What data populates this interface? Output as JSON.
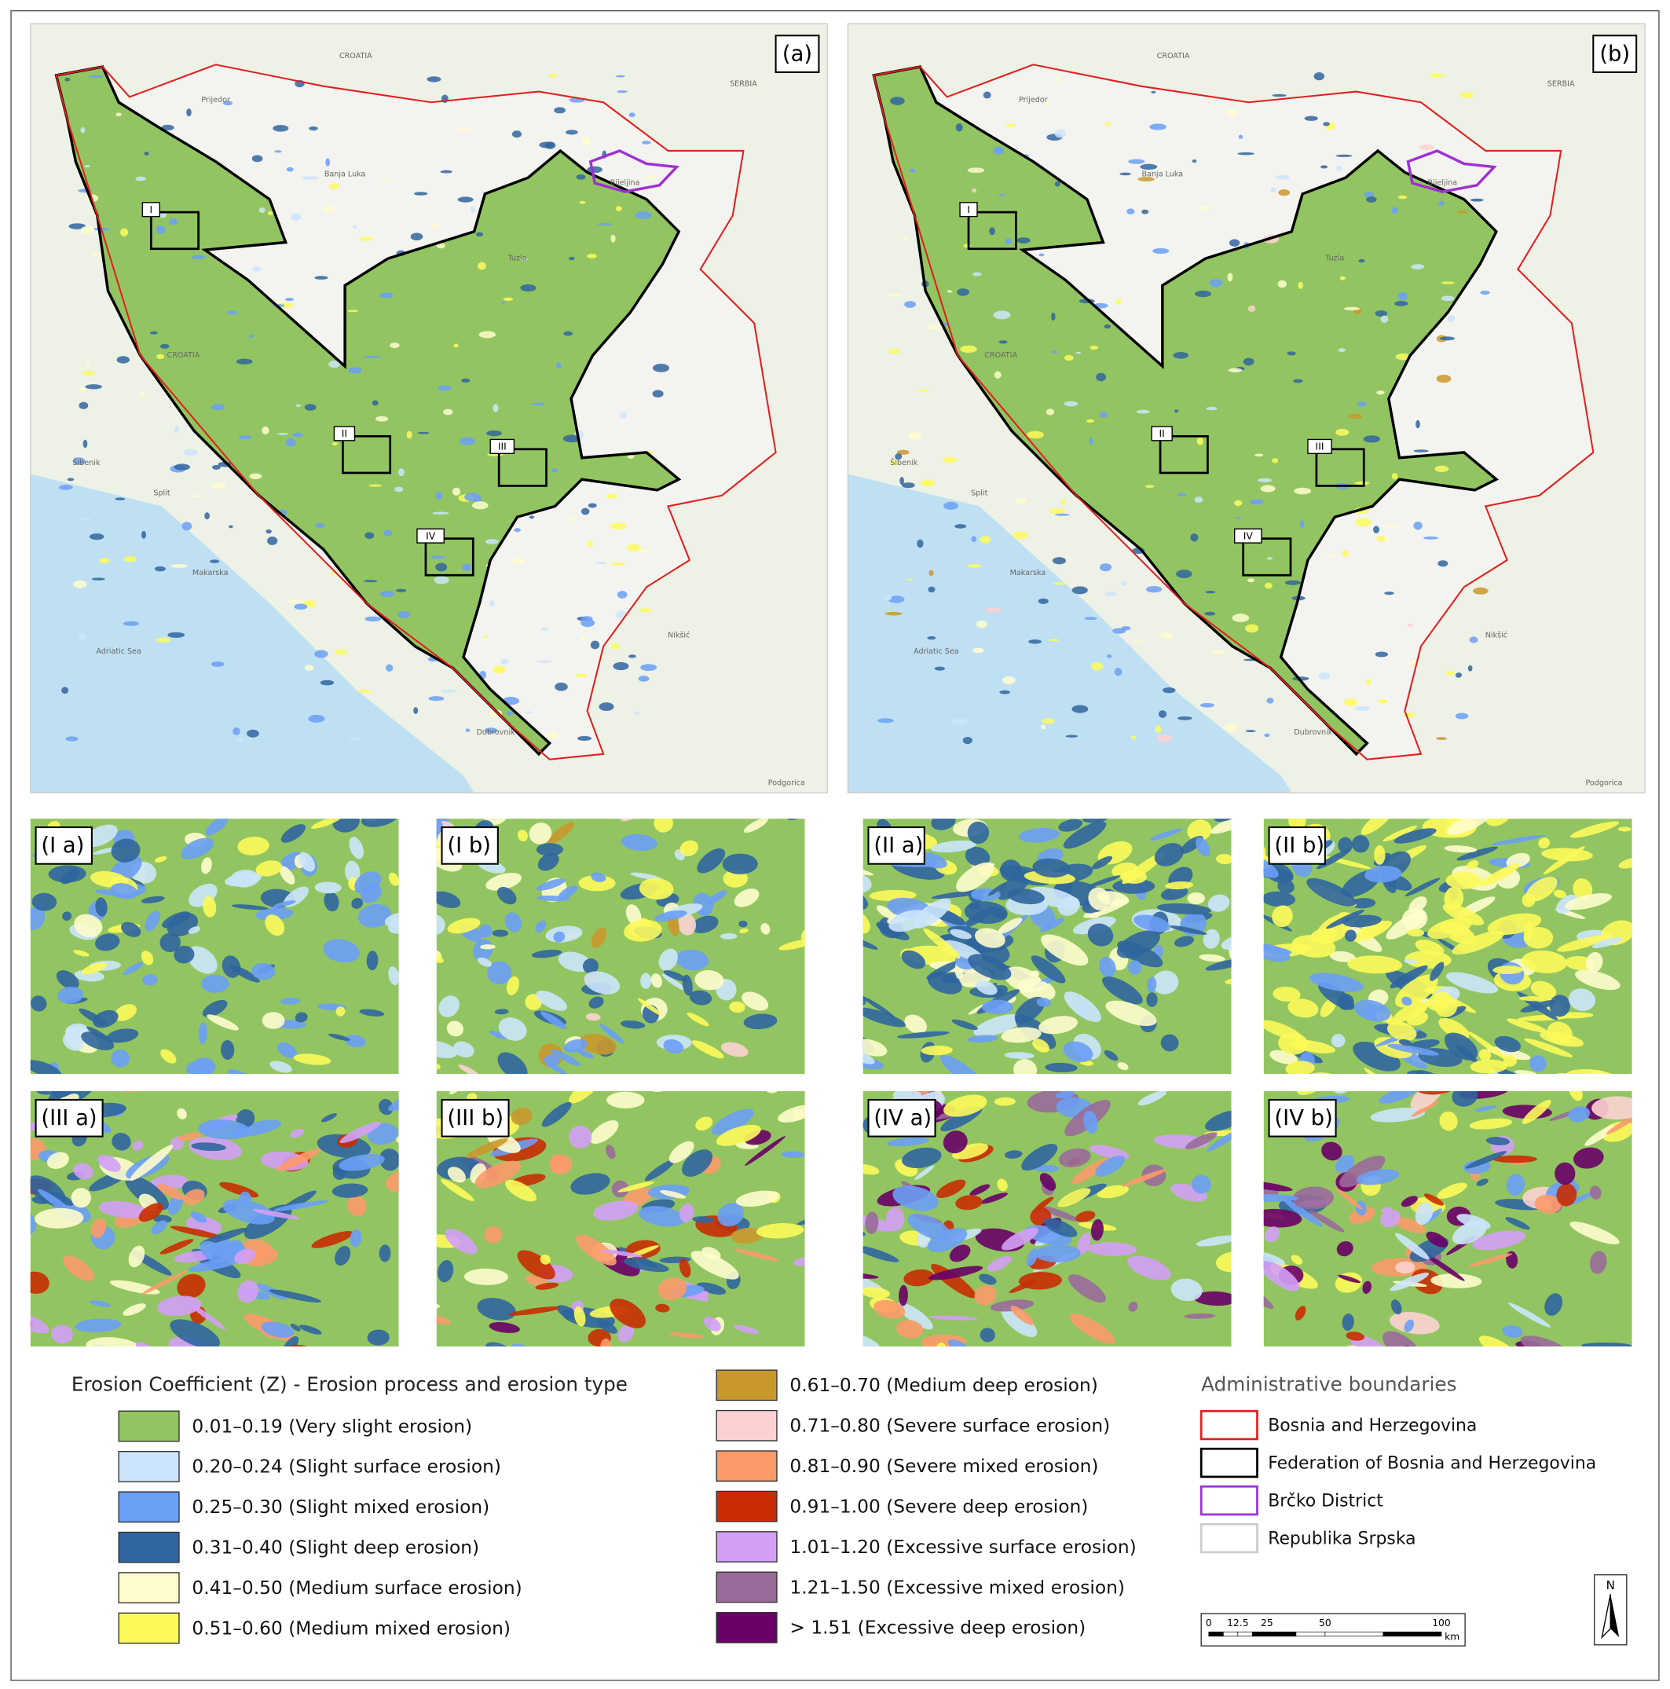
{
  "panels": [
    {
      "label": "(a)"
    },
    {
      "label": "(b)"
    }
  ],
  "zoom_boxes": [
    "I",
    "II",
    "III",
    "IV"
  ],
  "map_labels": [
    "CROATIA",
    "CROATIA",
    "SERBIA",
    "Prijedor",
    "Banja Luka",
    "Bijeljina",
    "Tuzla",
    "Šibenik",
    "Split",
    "Makarska",
    "Dubrovnik",
    "Podgorica",
    "Adriatic Sea",
    "Nikšić"
  ],
  "insets": [
    "(I a)",
    "(I b)",
    "(II a)",
    "(II b)",
    "(III a)",
    "(III b)",
    "(IV a)",
    "(IV b)"
  ],
  "legend": {
    "title": "Erosion Coefficient (Z) - Erosion process and erosion type",
    "items": [
      {
        "label": "0.01–0.19 (Very slight erosion)",
        "color": "#92c561"
      },
      {
        "label": "0.20–0.24 (Slight surface erosion)",
        "color": "#cce4fb"
      },
      {
        "label": "0.25–0.30 (Slight mixed erosion)",
        "color": "#6b9ff5"
      },
      {
        "label": "0.31–0.40 (Slight deep erosion)",
        "color": "#30659f"
      },
      {
        "label": "0.41–0.50 (Medium surface erosion)",
        "color": "#fefccc"
      },
      {
        "label": "0.51–0.60 (Medium mixed erosion)",
        "color": "#fcfa5a"
      },
      {
        "label": "0.61–0.70 (Medium deep erosion)",
        "color": "#c9982c"
      },
      {
        "label": "0.71–0.80 (Severe surface erosion)",
        "color": "#fdd1d1"
      },
      {
        "label": "0.81–0.90 (Severe mixed erosion)",
        "color": "#fc9a6a"
      },
      {
        "label": "0.91–1.00 (Severe deep erosion)",
        "color": "#c92c02"
      },
      {
        "label": "1.01–1.20 (Excessive surface erosion)",
        "color": "#d49ef7"
      },
      {
        "label": "1.21–1.50 (Excessive mixed erosion)",
        "color": "#9a6a9a"
      },
      {
        "label": "> 1.51 (Excessive deep erosion)",
        "color": "#6a0067"
      }
    ]
  },
  "admin": {
    "title": "Administrative boundaries",
    "items": [
      {
        "label": "Bosnia and Herzegovina",
        "color": "#e02020"
      },
      {
        "label": "Federation of Bosnia and Herzegovina",
        "color": "#000000"
      },
      {
        "label": "Brčko District",
        "color": "#a030d0"
      },
      {
        "label": "Republika Srpska",
        "color": "#cccccc"
      }
    ]
  },
  "north": "N",
  "scale": {
    "ticks": [
      0,
      12.5,
      25,
      50,
      100
    ],
    "unit": "km"
  }
}
